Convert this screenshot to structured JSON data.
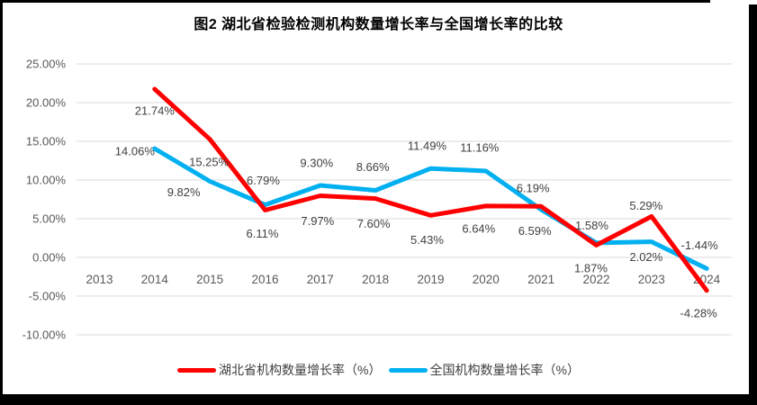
{
  "title": "图2  湖北省检验检测机构数量增长率与全国增长率的比较",
  "chart_data": {
    "type": "line",
    "x": [
      "2013",
      "2014",
      "2015",
      "2016",
      "2017",
      "2018",
      "2019",
      "2020",
      "2021",
      "2022",
      "2023",
      "2024"
    ],
    "series": [
      {
        "name": "湖北省机构数量增长率（%）",
        "color": "#FF0000",
        "values": [
          null,
          21.74,
          15.25,
          6.11,
          7.97,
          7.6,
          5.43,
          6.64,
          6.59,
          1.58,
          5.29,
          -4.28
        ],
        "labels": [
          "",
          "21.74%",
          "15.25%",
          "6.11%",
          "7.97%",
          "7.60%",
          "5.43%",
          "6.64%",
          "6.59%",
          "1.58%",
          "5.29%",
          "-4.28%"
        ],
        "label_offsets": [
          [
            0,
            0
          ],
          [
            0,
            24
          ],
          [
            -1,
            25
          ],
          [
            -3,
            26
          ],
          [
            -3,
            28
          ],
          [
            -2,
            28
          ],
          [
            -4,
            27
          ],
          [
            -8,
            25
          ],
          [
            -7,
            27
          ],
          [
            -5,
            -22
          ],
          [
            -6,
            -12
          ],
          [
            -9,
            25
          ]
        ]
      },
      {
        "name": "全国机构数量增长率（%）",
        "color": "#00B0F0",
        "values": [
          null,
          14.06,
          9.82,
          6.79,
          9.3,
          8.66,
          11.49,
          11.16,
          6.19,
          1.87,
          2.02,
          -1.44
        ],
        "labels": [
          "",
          "14.06%",
          "9.82%",
          "6.79%",
          "9.30%",
          "8.66%",
          "11.49%",
          "11.16%",
          "6.19%",
          "1.87%",
          "2.02%",
          "-1.44%"
        ],
        "label_offsets": [
          [
            0,
            0
          ],
          [
            -22,
            3
          ],
          [
            -29,
            12
          ],
          [
            -2,
            -27
          ],
          [
            -4,
            -25
          ],
          [
            -3,
            -26
          ],
          [
            -4,
            -25
          ],
          [
            -7,
            -26
          ],
          [
            -9,
            -24
          ],
          [
            -6,
            28
          ],
          [
            -6,
            17
          ],
          [
            -8,
            -26
          ]
        ]
      }
    ],
    "yticks": {
      "values": [
        25,
        20,
        15,
        10,
        5,
        0,
        -5,
        -10
      ],
      "labels": [
        "25.00%",
        "20.00%",
        "15.00%",
        "10.00%",
        "5.00%",
        "0.00%",
        "-5.00%",
        "-10.00%"
      ]
    },
    "ylim": [
      -10,
      25
    ],
    "grid": true,
    "gridline_color": "#D9D9D9",
    "axis_text_color": "#595959",
    "data_label_color": "#404040",
    "legend_position": "bottom"
  }
}
